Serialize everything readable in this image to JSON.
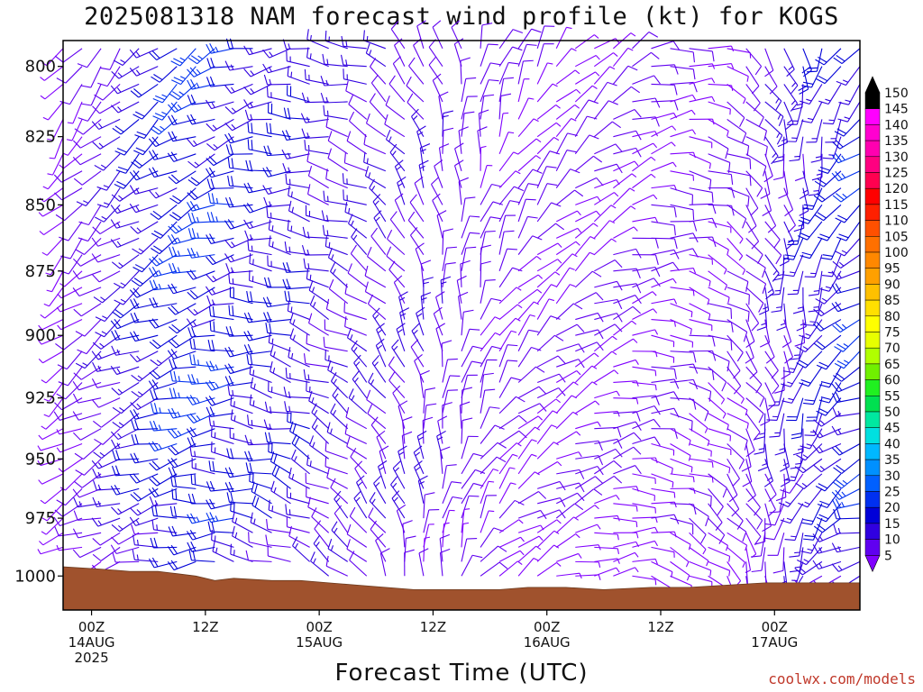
{
  "title": "2025081318 NAM forecast wind profile (kt) for KOGS",
  "x_axis_title": "Forecast Time (UTC)",
  "credit": "coolwx.com/models",
  "chart_data": {
    "type": "wind-barb-profile",
    "title": "2025081318 NAM forecast wind profile (kt) for KOGS",
    "xlabel": "Forecast Time (UTC)",
    "ylabel": "",
    "x_range_hours": [
      -3,
      81
    ],
    "y_range_hpa": [
      1015,
      791
    ],
    "y_ticks": [
      800,
      825,
      850,
      875,
      900,
      925,
      950,
      975,
      1000
    ],
    "x_ticks": [
      {
        "hour": 0,
        "lines": [
          "00Z",
          "14AUG",
          "2025"
        ]
      },
      {
        "hour": 12,
        "lines": [
          "12Z"
        ]
      },
      {
        "hour": 24,
        "lines": [
          "00Z",
          "15AUG"
        ]
      },
      {
        "hour": 36,
        "lines": [
          "12Z"
        ]
      },
      {
        "hour": 48,
        "lines": [
          "00Z",
          "16AUG"
        ]
      },
      {
        "hour": 60,
        "lines": [
          "12Z"
        ]
      },
      {
        "hour": 72,
        "lines": [
          "00Z",
          "17AUG"
        ]
      }
    ],
    "colorbar": {
      "units": "kt",
      "levels": [
        5,
        10,
        15,
        20,
        25,
        30,
        35,
        40,
        45,
        50,
        55,
        60,
        65,
        70,
        75,
        80,
        85,
        90,
        95,
        100,
        105,
        110,
        115,
        120,
        125,
        130,
        135,
        140,
        145,
        150
      ],
      "colors": [
        "#8000ff",
        "#6000f0",
        "#3000e0",
        "#0000d8",
        "#0030f0",
        "#0060ff",
        "#0090ff",
        "#00b8ff",
        "#00e0e0",
        "#00e8a0",
        "#00e050",
        "#20f020",
        "#70f000",
        "#b0ff00",
        "#e8ff00",
        "#ffff00",
        "#ffe000",
        "#ffc000",
        "#ffa000",
        "#ff8800",
        "#ff7000",
        "#ff5000",
        "#ff2000",
        "#ff0000",
        "#ff0050",
        "#ff0080",
        "#ff00b0",
        "#ff00d0",
        "#ff00ff",
        "#000000"
      ],
      "low_end_color": "#8000ff",
      "high_end_color": "#000000"
    },
    "terrain": {
      "color": "#a0522d",
      "surface_pressure_hpa": [
        {
          "hour": -3,
          "p": 996
        },
        {
          "hour": 1,
          "p": 997
        },
        {
          "hour": 4,
          "p": 998
        },
        {
          "hour": 7,
          "p": 998
        },
        {
          "hour": 9,
          "p": 999
        },
        {
          "hour": 11,
          "p": 1000
        },
        {
          "hour": 13,
          "p": 1002
        },
        {
          "hour": 15,
          "p": 1001
        },
        {
          "hour": 19,
          "p": 1002
        },
        {
          "hour": 22,
          "p": 1002
        },
        {
          "hour": 25,
          "p": 1003
        },
        {
          "hour": 28,
          "p": 1004
        },
        {
          "hour": 31,
          "p": 1005
        },
        {
          "hour": 34,
          "p": 1006
        },
        {
          "hour": 37,
          "p": 1006
        },
        {
          "hour": 40,
          "p": 1006
        },
        {
          "hour": 43,
          "p": 1006
        },
        {
          "hour": 46,
          "p": 1005
        },
        {
          "hour": 50,
          "p": 1005
        },
        {
          "hour": 54,
          "p": 1006
        },
        {
          "hour": 59,
          "p": 1005
        },
        {
          "hour": 63,
          "p": 1005
        },
        {
          "hour": 67,
          "p": 1004
        },
        {
          "hour": 71,
          "p": 1003
        },
        {
          "hour": 75,
          "p": 1003
        },
        {
          "hour": 81,
          "p": 1003
        }
      ]
    },
    "wind_barbs": {
      "columns_every_hours": 2,
      "levels_every_hpa": 6.25,
      "field": [
        {
          "hour": -3,
          "dir_deg": 230,
          "speed_kt": 6
        },
        {
          "hour": 10,
          "dir_deg": 250,
          "speed_kt": 24
        },
        {
          "hour": 28,
          "dir_deg": 300,
          "speed_kt": 14
        },
        {
          "hour": 36,
          "dir_deg": 350,
          "speed_kt": 12
        },
        {
          "hour": 44,
          "dir_deg": 40,
          "speed_kt": 8
        },
        {
          "hour": 55,
          "dir_deg": 70,
          "speed_kt": 8
        },
        {
          "hour": 66,
          "dir_deg": 120,
          "speed_kt": 8
        },
        {
          "hour": 81,
          "dir_deg": 240,
          "speed_kt": 22
        }
      ]
    }
  }
}
